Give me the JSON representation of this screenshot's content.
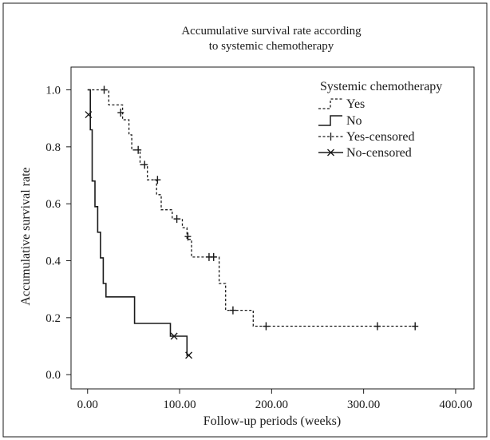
{
  "chart_data": {
    "type": "line",
    "title_lines": [
      "Accumulative survival rate according",
      "to systemic chemotherapy"
    ],
    "xlabel": "Follow-up periods (weeks)",
    "ylabel": "Accumulative survival rate",
    "xlim": [
      -18,
      420
    ],
    "ylim": [
      -0.05,
      1.08
    ],
    "x_ticks": [
      0,
      100,
      200,
      300,
      400
    ],
    "x_tick_labels": [
      "0.00",
      "100.00",
      "200.00",
      "300.00",
      "400.00"
    ],
    "y_ticks": [
      0.0,
      0.2,
      0.4,
      0.6,
      0.8,
      1.0
    ],
    "y_tick_labels": [
      "0.0",
      "0.2",
      "0.4",
      "0.6",
      "0.8",
      "1.0"
    ],
    "grid": false,
    "legend": {
      "title": "Systemic chemotherapy",
      "position": "top-right",
      "entries": [
        "Yes",
        "No",
        "Yes-censored",
        "No-censored"
      ]
    },
    "series": [
      {
        "name": "Yes",
        "style": "dashed-step",
        "steps": [
          [
            0,
            1.0
          ],
          [
            23,
            1.0
          ],
          [
            23,
            0.947
          ],
          [
            38,
            0.947
          ],
          [
            38,
            0.895
          ],
          [
            45,
            0.895
          ],
          [
            45,
            0.842
          ],
          [
            48,
            0.842
          ],
          [
            48,
            0.789
          ],
          [
            57,
            0.789
          ],
          [
            57,
            0.737
          ],
          [
            65,
            0.737
          ],
          [
            65,
            0.684
          ],
          [
            75,
            0.684
          ],
          [
            75,
            0.632
          ],
          [
            80,
            0.632
          ],
          [
            80,
            0.579
          ],
          [
            92,
            0.579
          ],
          [
            92,
            0.547
          ],
          [
            103,
            0.547
          ],
          [
            103,
            0.516
          ],
          [
            108,
            0.516
          ],
          [
            108,
            0.475
          ],
          [
            113,
            0.475
          ],
          [
            113,
            0.413
          ],
          [
            143,
            0.413
          ],
          [
            143,
            0.32
          ],
          [
            150,
            0.32
          ],
          [
            150,
            0.226
          ],
          [
            180,
            0.226
          ],
          [
            180,
            0.17
          ],
          [
            358,
            0.17
          ]
        ]
      },
      {
        "name": "No",
        "style": "solid-step",
        "steps": [
          [
            0,
            1.0
          ],
          [
            3,
            1.0
          ],
          [
            3,
            0.86
          ],
          [
            5,
            0.86
          ],
          [
            5,
            0.68
          ],
          [
            8,
            0.68
          ],
          [
            8,
            0.59
          ],
          [
            11,
            0.59
          ],
          [
            11,
            0.5
          ],
          [
            14,
            0.5
          ],
          [
            14,
            0.41
          ],
          [
            17,
            0.41
          ],
          [
            17,
            0.32
          ],
          [
            20,
            0.32
          ],
          [
            20,
            0.273
          ],
          [
            51,
            0.273
          ],
          [
            51,
            0.18
          ],
          [
            90,
            0.18
          ],
          [
            90,
            0.135
          ],
          [
            108,
            0.135
          ],
          [
            108,
            0.068
          ],
          [
            111,
            0.068
          ]
        ]
      },
      {
        "name": "Yes-censored",
        "marker": "plus",
        "points": [
          [
            18,
            1.0
          ],
          [
            36,
            0.92
          ],
          [
            55,
            0.789
          ],
          [
            62,
            0.737
          ],
          [
            76,
            0.684
          ],
          [
            97,
            0.547
          ],
          [
            109,
            0.485
          ],
          [
            132,
            0.413
          ],
          [
            137,
            0.413
          ],
          [
            158,
            0.226
          ],
          [
            194,
            0.17
          ],
          [
            315,
            0.17
          ],
          [
            356,
            0.17
          ]
        ]
      },
      {
        "name": "No-censored",
        "marker": "x",
        "points": [
          [
            1,
            0.913
          ],
          [
            94,
            0.135
          ],
          [
            110,
            0.068
          ]
        ]
      }
    ]
  }
}
